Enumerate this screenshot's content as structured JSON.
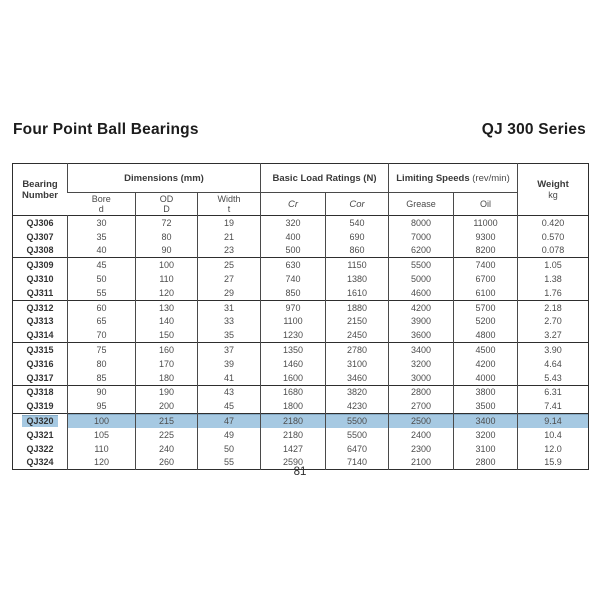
{
  "page": {
    "title_left": "Four Point Ball Bearings",
    "title_right": "QJ 300 Series",
    "page_number": "81"
  },
  "table": {
    "highlight_color": "#a6c9e2",
    "highlighted_row": "QJ320",
    "header": {
      "bearing_number": "Bearing\nNumber",
      "dimensions": "Dimensions (mm)",
      "basic_load_ratings": "Basic Load Ratings (N)",
      "limiting_speeds": "Limiting Speeds",
      "limiting_speeds_unit": "(rev/min)",
      "weight": "Weight",
      "weight_unit": "kg",
      "bore_label": "Bore",
      "bore_sym": "d",
      "od_label": "OD",
      "od_sym": "D",
      "width_label": "Width",
      "width_sym": "t",
      "cr": "Cr",
      "cor": "Cor",
      "grease": "Grease",
      "oil": "Oil"
    },
    "groups": [
      {
        "rows": [
          {
            "highlighted": false,
            "cells": [
              "QJ306",
              "30",
              "72",
              "19",
              "320",
              "540",
              "8000",
              "11000",
              "0.420"
            ]
          },
          {
            "highlighted": false,
            "cells": [
              "QJ307",
              "35",
              "80",
              "21",
              "400",
              "690",
              "7000",
              "9300",
              "0.570"
            ]
          },
          {
            "highlighted": false,
            "cells": [
              "QJ308",
              "40",
              "90",
              "23",
              "500",
              "860",
              "6200",
              "8200",
              "0.078"
            ]
          }
        ]
      },
      {
        "rows": [
          {
            "highlighted": false,
            "cells": [
              "QJ309",
              "45",
              "100",
              "25",
              "630",
              "1150",
              "5500",
              "7400",
              "1.05"
            ]
          },
          {
            "highlighted": false,
            "cells": [
              "QJ310",
              "50",
              "110",
              "27",
              "740",
              "1380",
              "5000",
              "6700",
              "1.38"
            ]
          },
          {
            "highlighted": false,
            "cells": [
              "QJ311",
              "55",
              "120",
              "29",
              "850",
              "1610",
              "4600",
              "6100",
              "1.76"
            ]
          }
        ]
      },
      {
        "rows": [
          {
            "highlighted": false,
            "cells": [
              "QJ312",
              "60",
              "130",
              "31",
              "970",
              "1880",
              "4200",
              "5700",
              "2.18"
            ]
          },
          {
            "highlighted": false,
            "cells": [
              "QJ313",
              "65",
              "140",
              "33",
              "1100",
              "2150",
              "3900",
              "5200",
              "2.70"
            ]
          },
          {
            "highlighted": false,
            "cells": [
              "QJ314",
              "70",
              "150",
              "35",
              "1230",
              "2450",
              "3600",
              "4800",
              "3.27"
            ]
          }
        ]
      },
      {
        "rows": [
          {
            "highlighted": false,
            "cells": [
              "QJ315",
              "75",
              "160",
              "37",
              "1350",
              "2780",
              "3400",
              "4500",
              "3.90"
            ]
          },
          {
            "highlighted": false,
            "cells": [
              "QJ316",
              "80",
              "170",
              "39",
              "1460",
              "3100",
              "3200",
              "4200",
              "4.64"
            ]
          },
          {
            "highlighted": false,
            "cells": [
              "QJ317",
              "85",
              "180",
              "41",
              "1600",
              "3460",
              "3000",
              "4000",
              "5.43"
            ]
          }
        ]
      },
      {
        "rows": [
          {
            "highlighted": false,
            "cells": [
              "QJ318",
              "90",
              "190",
              "43",
              "1680",
              "3820",
              "2800",
              "3800",
              "6.31"
            ]
          },
          {
            "highlighted": false,
            "cells": [
              "QJ319",
              "95",
              "200",
              "45",
              "1800",
              "4230",
              "2700",
              "3500",
              "7.41"
            ]
          }
        ]
      },
      {
        "rows": [
          {
            "highlighted": true,
            "cells": [
              "QJ320",
              "100",
              "215",
              "47",
              "2180",
              "5500",
              "2500",
              "3400",
              "9.14"
            ]
          },
          {
            "highlighted": false,
            "cells": [
              "QJ321",
              "105",
              "225",
              "49",
              "2180",
              "5500",
              "2400",
              "3200",
              "10.4"
            ]
          },
          {
            "highlighted": false,
            "cells": [
              "QJ322",
              "110",
              "240",
              "50",
              "1427",
              "6470",
              "2300",
              "3100",
              "12.0"
            ]
          },
          {
            "highlighted": false,
            "cells": [
              "QJ324",
              "120",
              "260",
              "55",
              "2590",
              "7140",
              "2100",
              "2800",
              "15.9"
            ]
          }
        ]
      }
    ]
  }
}
